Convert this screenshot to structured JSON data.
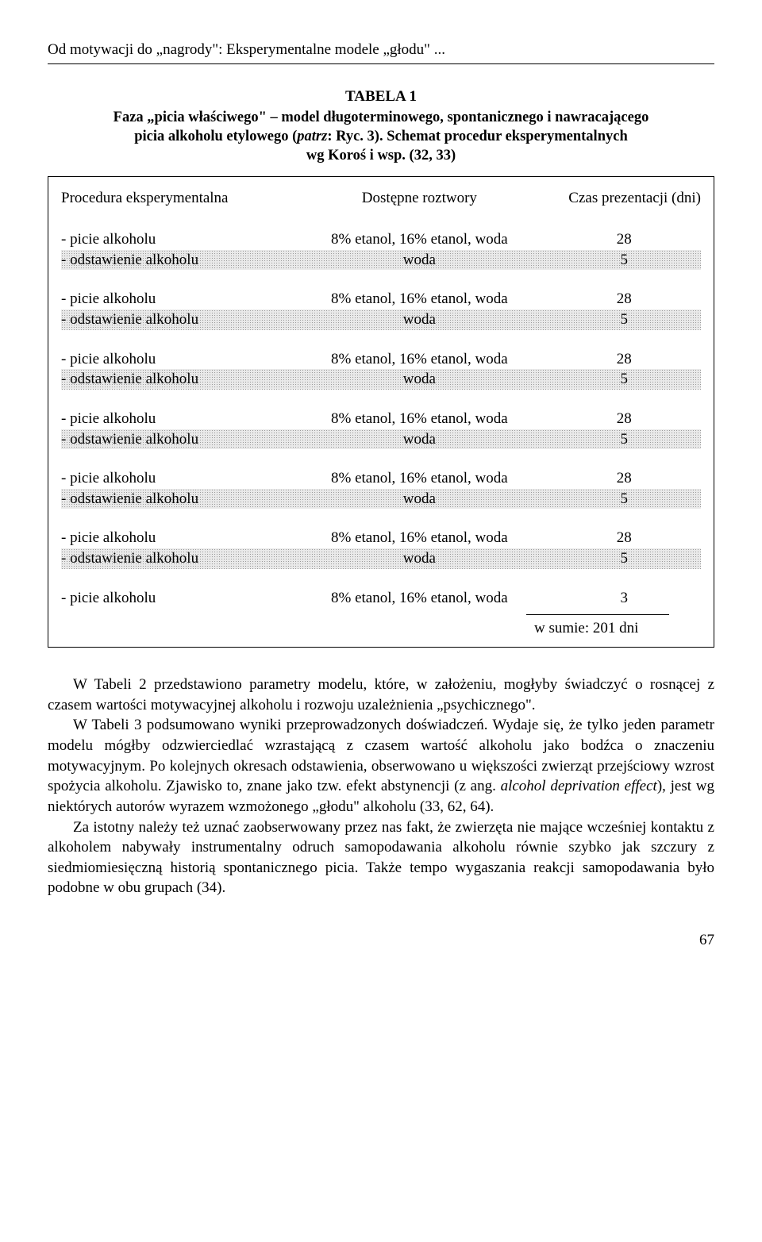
{
  "running_head": "Od motywacji do „nagrody\": Eksperymentalne modele „głodu\" ...",
  "table": {
    "label": "TABELA 1",
    "caption_line1": "Faza „picia właściwego\" – model długoterminowego, spontanicznego i nawracającego",
    "caption_line2": "picia alkoholu etylowego (patrz: Ryc. 3). Schemat procedur eksperymentalnych",
    "caption_line3": "wg Koroś i wsp. (32, 33)",
    "columns": [
      "Procedura eksperymentalna",
      "Dostępne roztwory",
      "Czas prezentacji (dni)"
    ],
    "pairs": [
      {
        "a": {
          "c1": "- picie alkoholu",
          "c2": "8% etanol, 16% etanol, woda",
          "c3": "28"
        },
        "b": {
          "c1": "- odstawienie alkoholu",
          "c2": "woda",
          "c3": "5"
        }
      },
      {
        "a": {
          "c1": "- picie alkoholu",
          "c2": "8% etanol, 16% etanol, woda",
          "c3": "28"
        },
        "b": {
          "c1": "- odstawienie alkoholu",
          "c2": "woda",
          "c3": "5"
        }
      },
      {
        "a": {
          "c1": "- picie alkoholu",
          "c2": "8% etanol, 16% etanol, woda",
          "c3": "28"
        },
        "b": {
          "c1": "- odstawienie alkoholu",
          "c2": "woda",
          "c3": "5"
        }
      },
      {
        "a": {
          "c1": "- picie alkoholu",
          "c2": "8% etanol, 16% etanol, woda",
          "c3": "28"
        },
        "b": {
          "c1": "- odstawienie alkoholu",
          "c2": "woda",
          "c3": "5"
        }
      },
      {
        "a": {
          "c1": "- picie alkoholu",
          "c2": "8% etanol, 16% etanol, woda",
          "c3": "28"
        },
        "b": {
          "c1": "- odstawienie alkoholu",
          "c2": "woda",
          "c3": "5"
        }
      },
      {
        "a": {
          "c1": "- picie alkoholu",
          "c2": "8% etanol, 16% etanol, woda",
          "c3": "28"
        },
        "b": {
          "c1": "- odstawienie alkoholu",
          "c2": "woda",
          "c3": "5"
        }
      }
    ],
    "last_row": {
      "c1": "- picie alkoholu",
      "c2": "8% etanol, 16% etanol, woda",
      "c3": "3"
    },
    "sum_label": "w sumie: 201 dni",
    "shaded_bg": "#e9e9e9",
    "dot_color": "#9a9a9a",
    "border_color": "#000000"
  },
  "paragraphs": [
    "W Tabeli 2 przedstawiono parametry modelu, które, w założeniu, mogłyby świadczyć o rosnącej z czasem wartości motywacyjnej alkoholu i rozwoju uzależnienia „psychicznego\".",
    "W Tabeli 3 podsumowano wyniki przeprowadzonych doświadczeń. Wydaje się, że tylko jeden parametr modelu mógłby odzwierciedlać wzrastającą z czasem wartość alkoholu jako bodźca o znaczeniu motywacyjnym. Po kolejnych okresach odstawienia, obserwowano u większości zwierząt przejściowy wzrost spożycia alkoholu. Zjawisko to, znane jako tzw. efekt abstynencji (z ang. alcohol deprivation effect), jest wg niektórych autorów wyrazem wzmożonego „głodu\" alkoholu (33, 62, 64).",
    "Za istotny należy też uznać zaobserwowany przez nas fakt, że zwierzęta nie mające wcześniej kontaktu z alkoholem nabywały instrumentalny odruch samopodawania alkoholu równie szybko jak szczury z siedmiomiesięczną historią spontanicznego picia. Także tempo wygaszania reakcji samopodawania było podobne w obu grupach (34)."
  ],
  "page_number": "67"
}
